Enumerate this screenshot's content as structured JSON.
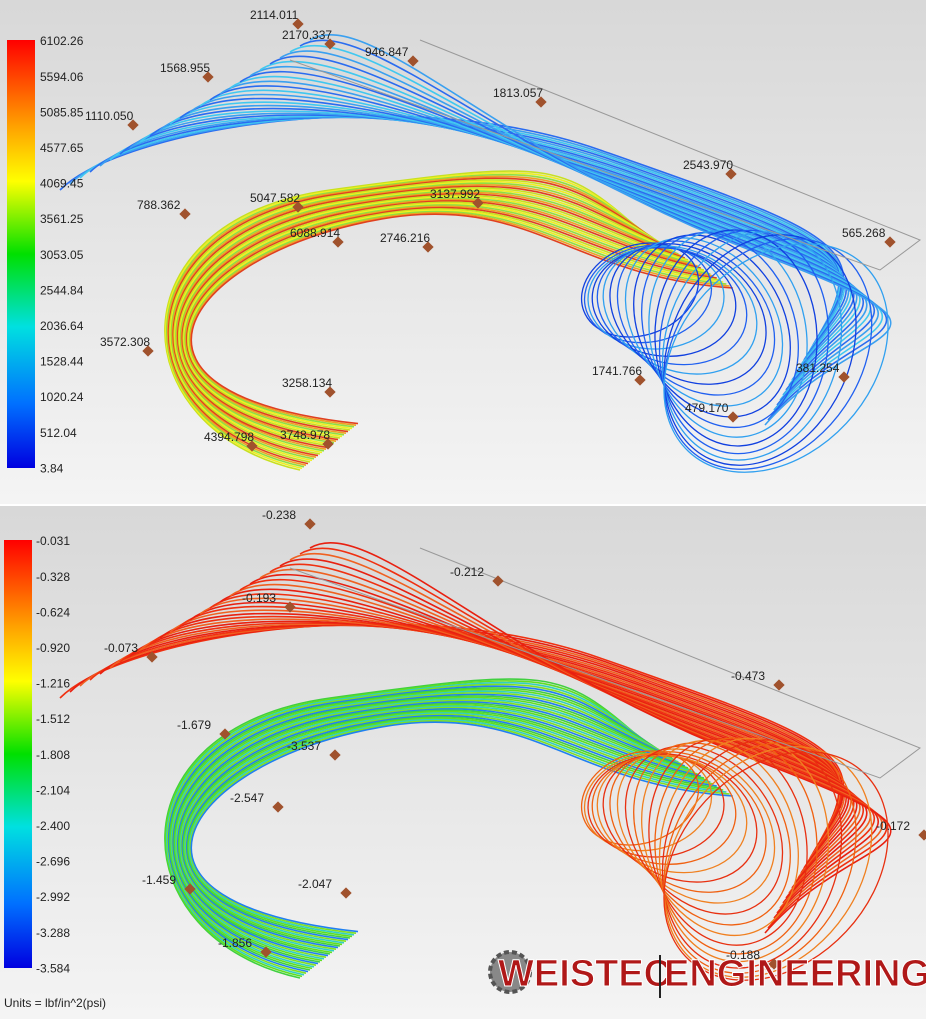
{
  "panels": [
    {
      "legend": {
        "labels": [
          "6102.26",
          "5594.06",
          "5085.85",
          "4577.65",
          "4069.45",
          "3561.25",
          "3053.05",
          "2544.84",
          "2036.64",
          "1528.44",
          "1020.24",
          "512.04",
          "3.84"
        ]
      },
      "probes": [
        "2114.011",
        "2170.337",
        "946.847",
        "1568.955",
        "1813.057",
        "1110.050",
        "2543.970",
        "788.362",
        "5047.582",
        "3137.992",
        "6088.914",
        "2746.216",
        "565.268",
        "3572.308",
        "1741.766",
        "381.254",
        "3258.134",
        "479.170",
        "4394.798",
        "3748.978"
      ]
    },
    {
      "legend": {
        "labels": [
          "-0.031",
          "-0.328",
          "-0.624",
          "-0.920",
          "-1.216",
          "-1.512",
          "-1.808",
          "-2.104",
          "-2.400",
          "-2.696",
          "-2.992",
          "-3.288",
          "-3.584"
        ]
      },
      "probes": [
        "-0.238",
        "-0.212",
        "-0.193",
        "-0.073",
        "-0.473",
        "-1.679",
        "-3.537",
        "-2.547",
        "-0.172",
        "-1.459",
        "-2.047",
        "-1.856",
        "-0.188"
      ],
      "units": "Units = lbf/in^2(psi)"
    }
  ],
  "logo": {
    "left": "WEISTEC",
    "right": "ENGINEERING"
  }
}
